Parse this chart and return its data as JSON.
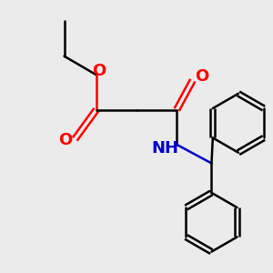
{
  "background_color": "#ebebeb",
  "bond_color": "#000000",
  "oxygen_color": "#ff0000",
  "nitrogen_color": "#0000cc",
  "line_width": 1.8,
  "font_size": 13,
  "fig_width": 3.0,
  "fig_height": 3.0,
  "dpi": 100,
  "xlim": [
    0,
    10
  ],
  "ylim": [
    0,
    10
  ]
}
